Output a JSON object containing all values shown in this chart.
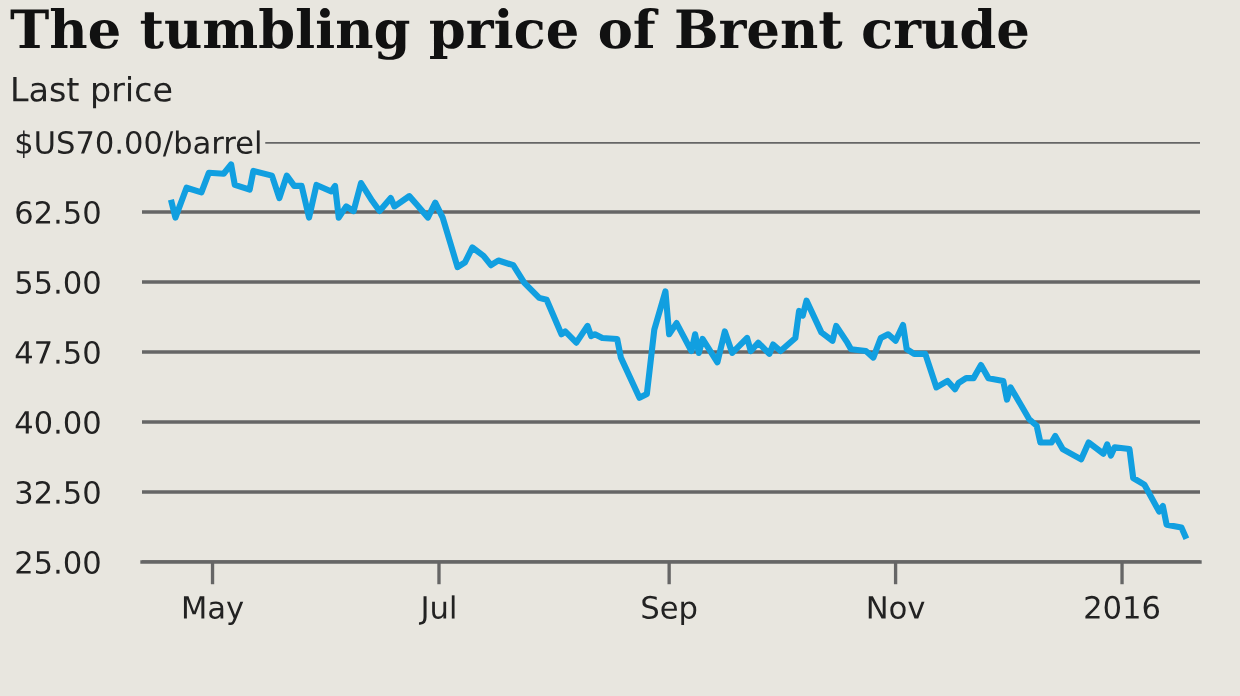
{
  "chart_data": {
    "type": "line",
    "title": "The tumbling price of Brent crude",
    "subtitle": "Last price",
    "x": [
      "2015-04-20",
      "2015-04-21",
      "2015-04-24",
      "2015-04-28",
      "2015-04-30",
      "2015-05-04",
      "2015-05-06",
      "2015-05-07",
      "2015-05-11",
      "2015-05-12",
      "2015-05-17",
      "2015-05-19",
      "2015-05-21",
      "2015-05-23",
      "2015-05-25",
      "2015-05-27",
      "2015-05-29",
      "2015-06-02",
      "2015-06-03",
      "2015-06-04",
      "2015-06-06",
      "2015-06-08",
      "2015-06-10",
      "2015-06-13",
      "2015-06-15",
      "2015-06-18",
      "2015-06-19",
      "2015-06-23",
      "2015-06-25",
      "2015-06-28",
      "2015-06-30",
      "2015-07-02",
      "2015-07-06",
      "2015-07-08",
      "2015-07-10",
      "2015-07-13",
      "2015-07-15",
      "2015-07-17",
      "2015-07-21",
      "2015-07-24",
      "2015-07-28",
      "2015-07-30",
      "2015-08-03",
      "2015-08-04",
      "2015-08-07",
      "2015-08-10",
      "2015-08-11",
      "2015-08-12",
      "2015-08-14",
      "2015-08-18",
      "2015-08-19",
      "2015-08-24",
      "2015-08-26",
      "2015-08-28",
      "2015-08-31",
      "2015-09-01",
      "2015-09-03",
      "2015-09-07",
      "2015-09-08",
      "2015-09-09",
      "2015-09-10",
      "2015-09-14",
      "2015-09-16",
      "2015-09-18",
      "2015-09-22",
      "2015-09-23",
      "2015-09-25",
      "2015-09-28",
      "2015-09-29",
      "2015-10-01",
      "2015-10-05",
      "2015-10-06",
      "2015-10-07",
      "2015-10-08",
      "2015-10-12",
      "2015-10-15",
      "2015-10-16",
      "2015-10-19",
      "2015-10-20",
      "2015-10-24",
      "2015-10-26",
      "2015-10-28",
      "2015-10-30",
      "2015-11-01",
      "2015-11-03",
      "2015-11-04",
      "2015-11-06",
      "2015-11-09",
      "2015-11-12",
      "2015-11-15",
      "2015-11-17",
      "2015-11-18",
      "2015-11-20",
      "2015-11-22",
      "2015-11-24",
      "2015-11-26",
      "2015-11-30",
      "2015-12-01",
      "2015-12-02",
      "2015-12-07",
      "2015-12-09",
      "2015-12-10",
      "2015-12-13",
      "2015-12-14",
      "2015-12-16",
      "2015-12-21",
      "2015-12-23",
      "2015-12-27",
      "2015-12-28",
      "2015-12-29",
      "2015-12-30",
      "2016-01-03",
      "2016-01-04",
      "2016-01-07",
      "2016-01-11",
      "2016-01-12",
      "2016-01-13",
      "2016-01-17",
      "2016-01-18"
    ],
    "series": [
      {
        "color": "#119fe0",
        "values": [
          63.5,
          61.9,
          65.1,
          64.6,
          66.7,
          66.6,
          67.6,
          65.4,
          64.9,
          66.9,
          66.4,
          64.0,
          66.4,
          65.3,
          65.3,
          61.9,
          65.4,
          64.7,
          65.3,
          61.9,
          63.1,
          62.6,
          65.6,
          63.7,
          62.6,
          64.0,
          63.1,
          64.2,
          63.3,
          61.9,
          63.5,
          61.9,
          56.6,
          57.1,
          58.7,
          57.8,
          56.8,
          57.3,
          56.8,
          54.9,
          53.3,
          53.1,
          49.4,
          49.7,
          48.5,
          50.3,
          49.2,
          49.4,
          49.0,
          48.9,
          46.9,
          42.6,
          43.0,
          49.9,
          54.0,
          49.4,
          50.6,
          47.6,
          49.4,
          47.4,
          48.9,
          46.4,
          49.7,
          47.4,
          49.0,
          47.6,
          48.5,
          47.3,
          48.3,
          47.6,
          49.0,
          51.9,
          51.4,
          53.0,
          49.6,
          48.7,
          50.3,
          48.5,
          47.8,
          47.6,
          46.9,
          49.0,
          49.4,
          48.7,
          50.4,
          47.8,
          47.3,
          47.3,
          43.7,
          44.4,
          43.5,
          44.2,
          44.7,
          44.7,
          46.1,
          44.7,
          44.4,
          42.4,
          43.7,
          40.3,
          39.6,
          37.8,
          37.8,
          38.5,
          37.1,
          36.0,
          37.8,
          36.6,
          37.6,
          36.4,
          37.3,
          37.1,
          34.0,
          33.3,
          30.4,
          31.0,
          29.0,
          28.7,
          27.8
        ]
      }
    ],
    "xlim": [
      "2015-04-12",
      "2016-01-22"
    ],
    "xticks": [
      {
        "value": "2015-05-01",
        "label": "May"
      },
      {
        "value": "2015-07-01",
        "label": "Jul"
      },
      {
        "value": "2015-09-01",
        "label": "Sep"
      },
      {
        "value": "2015-11-01",
        "label": "Nov"
      },
      {
        "value": "2016-01-01",
        "label": "2016"
      }
    ],
    "ylim": [
      25,
      70
    ],
    "yticks": [
      {
        "value": 25,
        "label": "25.00"
      },
      {
        "value": 32.5,
        "label": "32.50"
      },
      {
        "value": 40,
        "label": "40.00"
      },
      {
        "value": 47.5,
        "label": "47.50"
      },
      {
        "value": 55,
        "label": "55.00"
      },
      {
        "value": 62.5,
        "label": "62.50"
      },
      {
        "value": 70,
        "label": "$US70.00/barrel"
      }
    ],
    "grid": "y",
    "legend": false
  }
}
